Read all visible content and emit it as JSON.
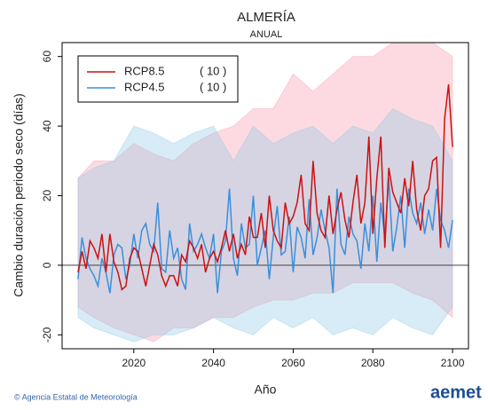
{
  "chart_data": {
    "type": "line",
    "title": "ALMERÍA",
    "subtitle": "ANUAL",
    "y_label": "Cambio duración periodo seco (días)",
    "x_label": "Año",
    "x": [
      2006,
      2007,
      2008,
      2009,
      2010,
      2011,
      2012,
      2013,
      2014,
      2015,
      2016,
      2017,
      2018,
      2019,
      2020,
      2021,
      2022,
      2023,
      2024,
      2025,
      2026,
      2027,
      2028,
      2029,
      2030,
      2031,
      2032,
      2033,
      2034,
      2035,
      2036,
      2037,
      2038,
      2039,
      2040,
      2041,
      2042,
      2043,
      2044,
      2045,
      2046,
      2047,
      2048,
      2049,
      2050,
      2051,
      2052,
      2053,
      2054,
      2055,
      2056,
      2057,
      2058,
      2059,
      2060,
      2061,
      2062,
      2063,
      2064,
      2065,
      2066,
      2067,
      2068,
      2069,
      2070,
      2071,
      2072,
      2073,
      2074,
      2075,
      2076,
      2077,
      2078,
      2079,
      2080,
      2081,
      2082,
      2083,
      2084,
      2085,
      2086,
      2087,
      2088,
      2089,
      2090,
      2091,
      2092,
      2093,
      2094,
      2095,
      2096,
      2097,
      2098,
      2099,
      2100
    ],
    "series": [
      {
        "name": "RCP8.5",
        "count_label": "( 10 )",
        "color": "#cc1111",
        "band_color": "rgba(250,150,170,0.35)",
        "values": [
          -2,
          4,
          -1,
          7,
          5,
          2,
          9,
          -2,
          9,
          1,
          -2,
          -7,
          -6,
          2,
          5,
          4,
          -1,
          -6,
          0,
          6,
          3,
          -3,
          -6,
          -3,
          -3,
          -6,
          3,
          1,
          7,
          5,
          2,
          6,
          -2,
          2,
          4,
          1,
          5,
          10,
          4,
          9,
          2,
          6,
          3,
          14,
          8,
          8,
          15,
          5,
          20,
          10,
          7,
          5,
          18,
          12,
          14,
          18,
          26,
          12,
          10,
          30,
          15,
          10,
          8,
          20,
          9,
          16,
          21,
          13,
          8,
          18,
          26,
          12,
          18,
          37,
          9,
          25,
          37,
          5,
          28,
          21,
          18,
          15,
          25,
          17,
          30,
          16,
          10,
          20,
          22,
          30,
          31,
          5,
          42,
          52,
          34
        ],
        "band_upper": [
          25,
          30,
          30,
          35,
          32,
          30,
          35,
          38,
          40,
          45,
          45,
          55,
          50,
          55,
          60,
          60,
          64,
          64,
          64,
          60
        ],
        "band_lower": [
          -12,
          -15,
          -18,
          -20,
          -22,
          -18,
          -18,
          -15,
          -15,
          -12,
          -10,
          -10,
          -8,
          -8,
          -5,
          -5,
          -5,
          -8,
          -10,
          -15
        ]
      },
      {
        "name": "RCP4.5",
        "count_label": "( 10 )",
        "color": "#3a8fdc",
        "band_color": "rgba(140,200,230,0.35)",
        "values": [
          -4,
          8,
          2,
          -1,
          -3,
          -6,
          2,
          -2,
          -8,
          3,
          6,
          5,
          -4,
          0,
          9,
          2,
          10,
          12,
          6,
          4,
          18,
          -1,
          -2,
          10,
          2,
          5,
          -4,
          -7,
          12,
          4,
          6,
          9,
          5,
          2,
          9,
          -8,
          4,
          7,
          22,
          2,
          -3,
          12,
          5,
          6,
          20,
          0,
          5,
          10,
          -4,
          8,
          17,
          3,
          4,
          14,
          -2,
          11,
          8,
          2,
          19,
          3,
          8,
          16,
          10,
          5,
          -8,
          22,
          6,
          3,
          14,
          9,
          7,
          -1,
          12,
          4,
          20,
          1,
          18,
          8,
          25,
          4,
          11,
          20,
          5,
          22,
          15,
          12,
          18,
          9,
          16,
          10,
          22,
          13,
          10,
          5,
          13
        ],
        "band_upper": [
          25,
          28,
          30,
          40,
          38,
          35,
          38,
          40,
          30,
          40,
          35,
          38,
          40,
          35,
          40,
          38,
          45,
          42,
          40,
          30
        ],
        "band_lower": [
          -15,
          -18,
          -20,
          -22,
          -20,
          -20,
          -18,
          -15,
          -18,
          -20,
          -15,
          -18,
          -15,
          -20,
          -18,
          -20,
          -15,
          -18,
          -20,
          -12
        ]
      }
    ],
    "band_x": [
      2006,
      2010,
      2015,
      2020,
      2025,
      2030,
      2035,
      2040,
      2045,
      2050,
      2055,
      2060,
      2065,
      2070,
      2075,
      2080,
      2085,
      2090,
      2095,
      2100
    ],
    "xlim": [
      2002,
      2104
    ],
    "ylim": [
      -24,
      64
    ],
    "xticks": [
      2020,
      2040,
      2060,
      2080,
      2100
    ],
    "yticks": [
      -20,
      0,
      20,
      40,
      60
    ],
    "hline": 0,
    "legend": "upper-left",
    "footer": {
      "credit": "© Agencia Estatal de Meteorología",
      "logo": "aemet"
    }
  }
}
